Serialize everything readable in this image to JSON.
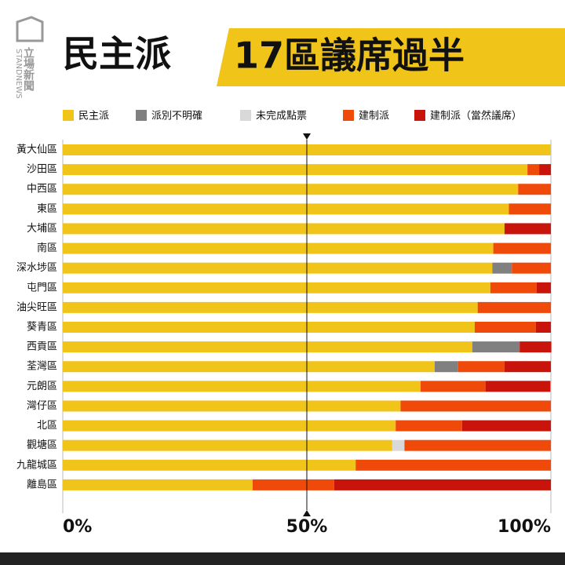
{
  "logo": {
    "name": "立場新聞",
    "latin": "STANDNEWS"
  },
  "chart_data": {
    "type": "stacked-bar-horizontal",
    "title_left": "民主派",
    "title_right": "17區議席過半",
    "categories": [
      "黃大仙區",
      "沙田區",
      "中西區",
      "東區",
      "大埔區",
      "南區",
      "深水埗區",
      "屯門區",
      "油尖旺區",
      "葵青區",
      "西貢區",
      "荃灣區",
      "元朗區",
      "灣仔區",
      "北區",
      "觀塘區",
      "九龍城區",
      "離島區"
    ],
    "series": [
      {
        "name": "民主派",
        "color": "#f0c419",
        "values": [
          100,
          95.2,
          93.3,
          91.4,
          90.5,
          88.2,
          88,
          87.6,
          85,
          84.4,
          83.9,
          76.2,
          73.3,
          69.2,
          68.2,
          67.5,
          60,
          38.9
        ]
      },
      {
        "name": "派別不明確",
        "color": "#808080",
        "values": [
          0,
          0,
          0,
          0,
          0,
          0,
          4,
          0,
          0,
          0,
          9.7,
          4.8,
          0,
          0,
          0,
          0,
          0,
          0
        ]
      },
      {
        "name": "未完成點票",
        "color": "#d9d9d9",
        "values": [
          0,
          0,
          0,
          0,
          0,
          0,
          0,
          0,
          0,
          0,
          0,
          0,
          0,
          0,
          0,
          2.5,
          0,
          0
        ]
      },
      {
        "name": "建制派",
        "color": "#f04a0a",
        "values": [
          0,
          2.4,
          6.7,
          8.6,
          0,
          11.8,
          8,
          9.5,
          15,
          12.5,
          0,
          9.5,
          13.3,
          30.8,
          13.6,
          30,
          40,
          16.7
        ]
      },
      {
        "name": "建制派（當然議席）",
        "color": "#c8140a",
        "values": [
          0,
          2.4,
          0,
          0,
          9.5,
          0,
          0,
          2.9,
          0,
          3.1,
          6.5,
          9.5,
          13.3,
          0,
          18.2,
          0,
          0,
          44.4
        ]
      }
    ],
    "xlim": [
      0,
      100
    ],
    "xticks": [
      {
        "value": 0,
        "label": "0%"
      },
      {
        "value": 50,
        "label": "50%"
      },
      {
        "value": 100,
        "label": "100%"
      }
    ]
  }
}
